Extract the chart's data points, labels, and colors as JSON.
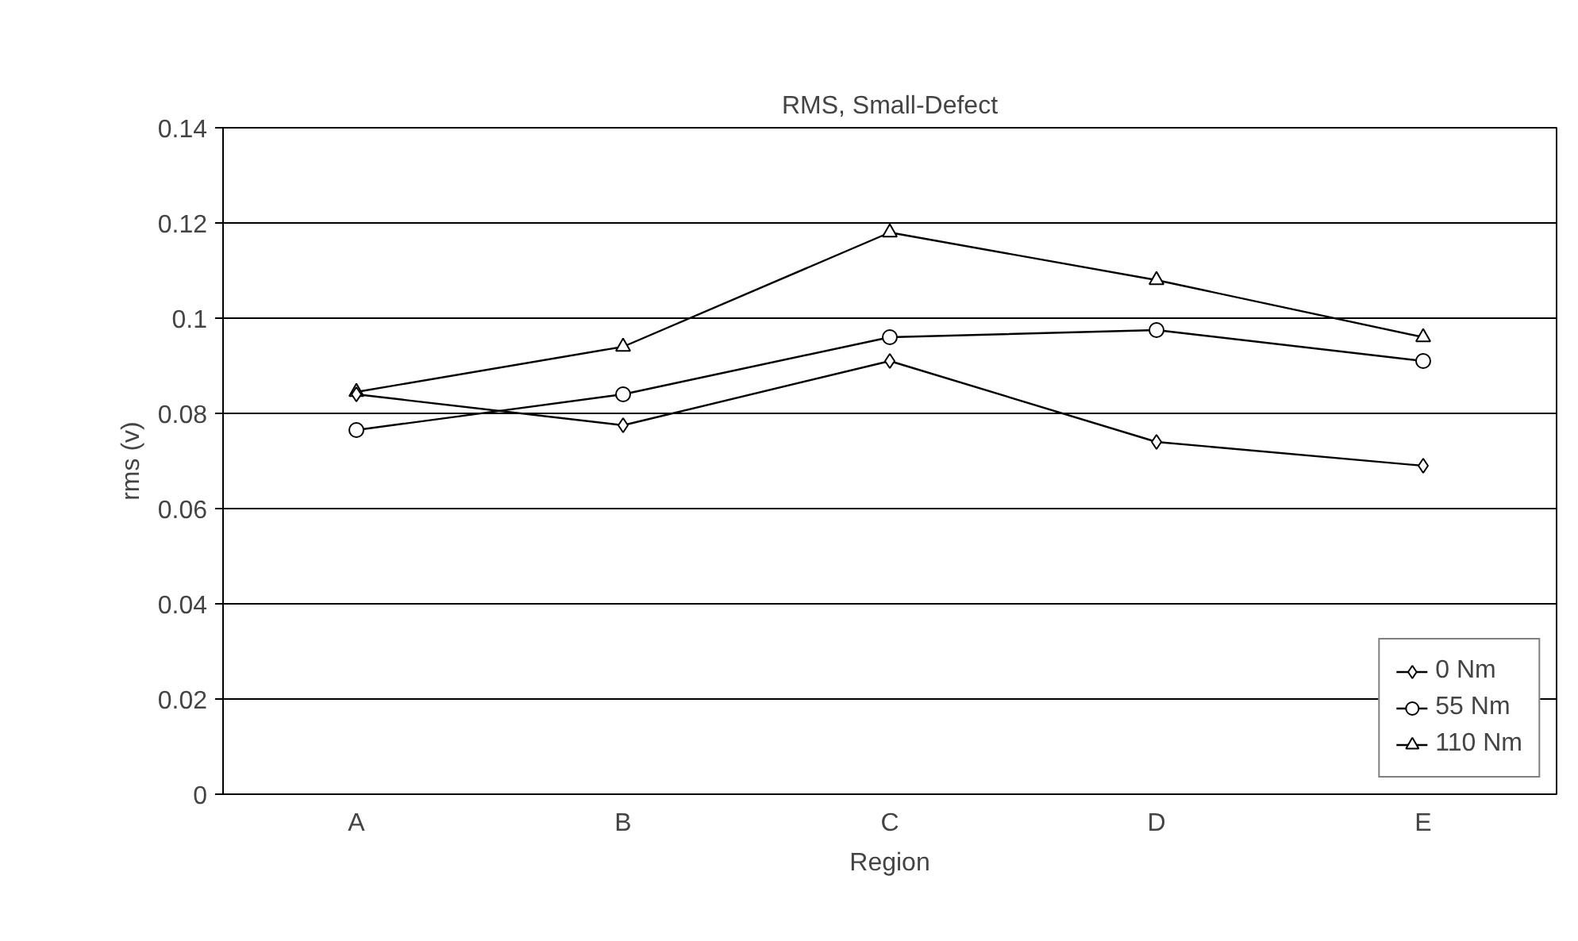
{
  "chart_data": {
    "type": "line",
    "title": "RMS, Small-Defect",
    "xlabel": "Region",
    "ylabel": "rms (v)",
    "categories": [
      "A",
      "B",
      "C",
      "D",
      "E"
    ],
    "series": [
      {
        "name": "0 Nm",
        "color": "#000000",
        "marker": "diamond",
        "values": [
          0.084,
          0.0775,
          0.091,
          0.074,
          0.069
        ]
      },
      {
        "name": "55 Nm",
        "color": "#000000",
        "marker": "circle",
        "values": [
          0.0765,
          0.084,
          0.096,
          0.0975,
          0.091
        ]
      },
      {
        "name": "110 Nm",
        "color": "#000000",
        "marker": "triangle",
        "values": [
          0.0845,
          0.094,
          0.118,
          0.108,
          0.096
        ]
      }
    ],
    "ylim": [
      0,
      0.14
    ],
    "yticks": [
      0,
      {
        "value": 0.02,
        "label": "0.02"
      },
      {
        "value": 0.04,
        "label": "0.04"
      },
      {
        "value": 0.06,
        "label": "0.06"
      },
      {
        "value": 0.08,
        "label": "0.08"
      },
      {
        "value": 0.1,
        "label": "0.1"
      },
      {
        "value": 0.12,
        "label": "0.12"
      },
      {
        "value": 0.14,
        "label": "0.14"
      }
    ],
    "grid": "y",
    "legend": "bottom right",
    "line_style": "solid"
  }
}
